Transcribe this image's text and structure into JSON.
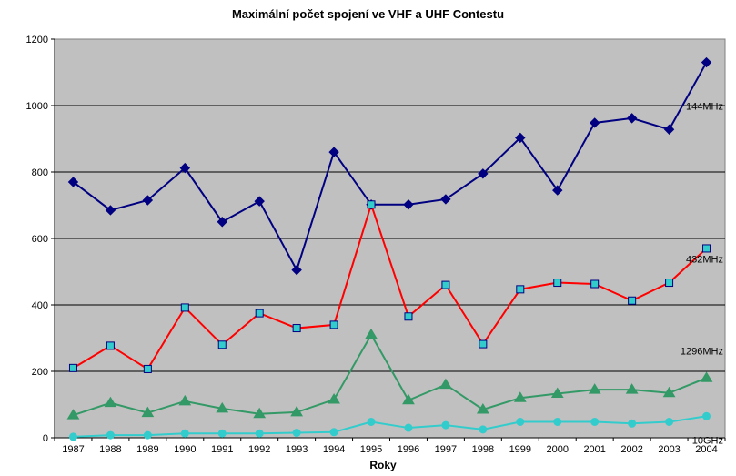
{
  "chart_data": {
    "type": "line",
    "title": "Maximální počet spojení ve VHF a UHF Contestu",
    "xlabel": "Roky",
    "ylabel": "",
    "ylim": [
      0,
      1200
    ],
    "yticks": [
      0,
      200,
      400,
      600,
      800,
      1000,
      1200
    ],
    "grid": true,
    "background": "#c0c0c0",
    "categories": [
      "1987",
      "1988",
      "1989",
      "1990",
      "1991",
      "1992",
      "1993",
      "1994",
      "1995",
      "1996",
      "1997",
      "1998",
      "1999",
      "2000",
      "2001",
      "2002",
      "2003",
      "2004"
    ],
    "series": [
      {
        "name": "144MHz",
        "color": "#000080",
        "marker": "diamond",
        "marker_fill": "#000080",
        "values": [
          770,
          685,
          715,
          812,
          650,
          712,
          505,
          860,
          702,
          702,
          718,
          795,
          903,
          745,
          948,
          962,
          928,
          1130
        ]
      },
      {
        "name": "432MHz",
        "color": "#ff0000",
        "marker": "square",
        "marker_fill": "#33cccc",
        "values": [
          210,
          277,
          207,
          392,
          280,
          375,
          330,
          340,
          702,
          365,
          460,
          282,
          447,
          467,
          463,
          413,
          467,
          570
        ]
      },
      {
        "name": "1296MHz",
        "color": "#339966",
        "marker": "triangle",
        "marker_fill": "#339966",
        "values": [
          68,
          105,
          75,
          110,
          88,
          72,
          77,
          115,
          310,
          113,
          160,
          85,
          120,
          133,
          145,
          145,
          135,
          180
        ]
      },
      {
        "name": "10GHz",
        "color": "#33cccc",
        "marker": "circle",
        "marker_fill": "#33cccc",
        "values": [
          3,
          8,
          8,
          13,
          13,
          13,
          15,
          17,
          48,
          30,
          38,
          25,
          48,
          48,
          48,
          43,
          48,
          65
        ]
      }
    ]
  }
}
